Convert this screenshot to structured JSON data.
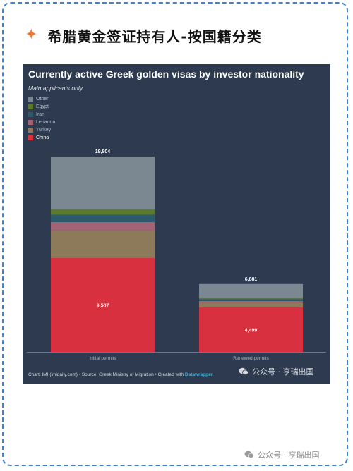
{
  "header": {
    "icon": "sparkle-icon",
    "title": "希腊黄金签证持有人-按国籍分类"
  },
  "colors": {
    "background": "#2d3a4f",
    "china": "#d9303f",
    "turkey": "#8c7a5a",
    "lebanon": "#a26474",
    "iran": "#2d5a6a",
    "egypt": "#5b7a2a",
    "other": "#7b8791"
  },
  "chart_data": {
    "type": "bar",
    "stacked": true,
    "title": "Currently active Greek golden visas by investor nationality",
    "subtitle": "Main applicants only",
    "categories": [
      "Initial permits",
      "Renewed permits"
    ],
    "legend": [
      "Other",
      "Egypt",
      "Iran",
      "Lebanon",
      "Turkey",
      "China"
    ],
    "legend_placement": "top-left",
    "series": [
      {
        "name": "China",
        "color": "#d9303f",
        "values": [
          9507,
          4499
        ]
      },
      {
        "name": "Turkey",
        "color": "#8c7a5a",
        "values": [
          2800,
          500
        ]
      },
      {
        "name": "Lebanon",
        "color": "#a26474",
        "values": [
          850,
          150
        ]
      },
      {
        "name": "Iran",
        "color": "#2d5a6a",
        "values": [
          750,
          180
        ]
      },
      {
        "name": "Egypt",
        "color": "#5b7a2a",
        "values": [
          550,
          130
        ]
      },
      {
        "name": "Other",
        "color": "#7b8791",
        "values": [
          5347,
          1422
        ]
      }
    ],
    "totals": [
      19804,
      6881
    ],
    "total_labels": [
      "19,804",
      "6,881"
    ],
    "china_labels": [
      "9,507",
      "4,499"
    ],
    "ylim": [
      0,
      19804
    ],
    "grid": false
  },
  "footer": {
    "source": "Chart: IMI (imidaily.com) • Source: Greek Ministry of Migration • Created with",
    "tool": "Datawrapper"
  },
  "watermark": {
    "icon": "wechat-icon",
    "text": "公众号 · 亨瑞出国"
  }
}
